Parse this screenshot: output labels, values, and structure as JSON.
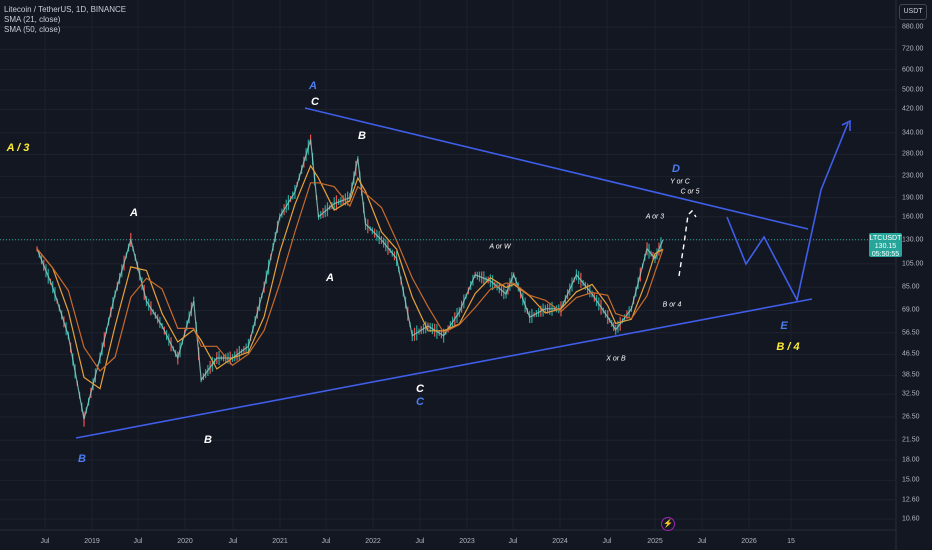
{
  "legend": {
    "symbol": "Litecoin / TetherUS, 1D, BINANCE",
    "sma21": "SMA (21, close)",
    "sma50": "SMA (50, close)"
  },
  "currency_button": "USDT",
  "price_label": {
    "symbol": "LTCUSDT",
    "price": "130.15",
    "countdown": "05:50:55"
  },
  "event_icon": "⚡",
  "colors": {
    "background": "#131722",
    "trendline": "#3f5ee8",
    "candle_up": "#26a69a",
    "candle_down": "#ef5350",
    "sma21": "#e6a13a",
    "sma50": "#c86a2b",
    "label_white": "#ffffff",
    "label_blue": "#4a7cf0",
    "label_yellow": "#ffeb3b"
  },
  "chart_data": {
    "type": "line",
    "title": "Litecoin / TetherUS, 1D, BINANCE",
    "y_scale": "log",
    "grid": true,
    "y_ticks": [
      "880.00",
      "720.00",
      "600.00",
      "500.00",
      "420.00",
      "340.00",
      "280.00",
      "230.00",
      "190.00",
      "160.00",
      "130.00",
      "105.00",
      "85.00",
      "69.00",
      "56.50",
      "46.50",
      "38.50",
      "32.50",
      "26.50",
      "21.50",
      "18.00",
      "15.00",
      "12.60",
      "10.60"
    ],
    "x_ticks": [
      "Jul",
      "2019",
      "Jul",
      "2020",
      "Jul",
      "2021",
      "Jul",
      "2022",
      "Jul",
      "2023",
      "Jul",
      "2024",
      "Jul",
      "2025",
      "Jul",
      "2026",
      "15"
    ],
    "series": [
      {
        "name": "Litecoin / TetherUS",
        "x": [
          "2018-06",
          "2018-08",
          "2018-10",
          "2018-12",
          "2019-02",
          "2019-04",
          "2019-06",
          "2019-08",
          "2019-10",
          "2019-12",
          "2020-02",
          "2020-03",
          "2020-05",
          "2020-07",
          "2020-09",
          "2020-11",
          "2021-01",
          "2021-03",
          "2021-05",
          "2021-06",
          "2021-08",
          "2021-10",
          "2021-11",
          "2021-12",
          "2022-02",
          "2022-04",
          "2022-06",
          "2022-08",
          "2022-10",
          "2022-12",
          "2023-02",
          "2023-04",
          "2023-06",
          "2023-07",
          "2023-09",
          "2023-11",
          "2024-01",
          "2024-03",
          "2024-05",
          "2024-07",
          "2024-08",
          "2024-10",
          "2024-12",
          "2025-01",
          "2025-02"
        ],
        "y": [
          120,
          85,
          55,
          26,
          45,
          80,
          130,
          75,
          60,
          45,
          75,
          37,
          45,
          45,
          50,
          85,
          160,
          200,
          320,
          160,
          180,
          190,
          270,
          150,
          130,
          110,
          55,
          60,
          55,
          68,
          95,
          90,
          80,
          95,
          65,
          70,
          70,
          95,
          80,
          65,
          58,
          70,
          120,
          110,
          130
        ]
      },
      {
        "name": "SMA (21, close)"
      },
      {
        "name": "SMA (50, close)"
      }
    ],
    "annotations": [
      {
        "text": "A / 3"
      },
      {
        "text": "A"
      },
      {
        "text": "A"
      },
      {
        "text": "B"
      },
      {
        "text": "B"
      },
      {
        "text": "C"
      },
      {
        "text": "A"
      },
      {
        "text": "B"
      },
      {
        "text": "C"
      },
      {
        "text": "C"
      },
      {
        "text": "A or W"
      },
      {
        "text": "X or B"
      },
      {
        "text": "A or 3"
      },
      {
        "text": "B or 4"
      },
      {
        "text": "D"
      },
      {
        "text": "Y or C"
      },
      {
        "text": "C or 5"
      },
      {
        "text": "E"
      },
      {
        "text": "B / 4"
      }
    ]
  }
}
